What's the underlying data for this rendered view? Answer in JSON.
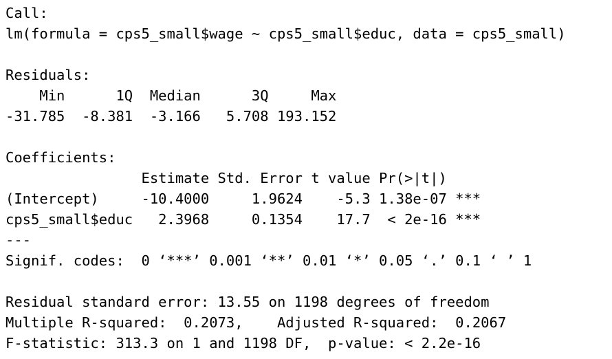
{
  "output": {
    "call_header": "Call:",
    "call": "lm(formula = cps5_small$wage ~ cps5_small$educ, data = cps5_small)",
    "residuals_header": "Residuals:",
    "residuals_columns": "    Min      1Q  Median      3Q     Max ",
    "residuals_values": "-31.785  -8.381  -3.166   5.708 193.152 ",
    "coefficients_header": "Coefficients:",
    "coefficients_columns": "                Estimate Std. Error t value Pr(>|t|)    ",
    "coefficients_rows": [
      "(Intercept)     -10.4000     1.9624    -5.3 1.38e-07 ***",
      "cps5_small$educ   2.3968     0.1354    17.7  < 2e-16 ***"
    ],
    "separator": "---",
    "signif_codes": "Signif. codes:  0 ‘***’ 0.001 ‘**’ 0.01 ‘*’ 0.05 ‘.’ 0.1 ‘ ’ 1",
    "residual_se": "Residual standard error: 13.55 on 1198 degrees of freedom",
    "r_squared": "Multiple R-squared:  0.2073,\tAdjusted R-squared:  0.2067 ",
    "f_statistic": "F-statistic: 313.3 on 1 and 1198 DF,  p-value: < 2.2e-16"
  }
}
